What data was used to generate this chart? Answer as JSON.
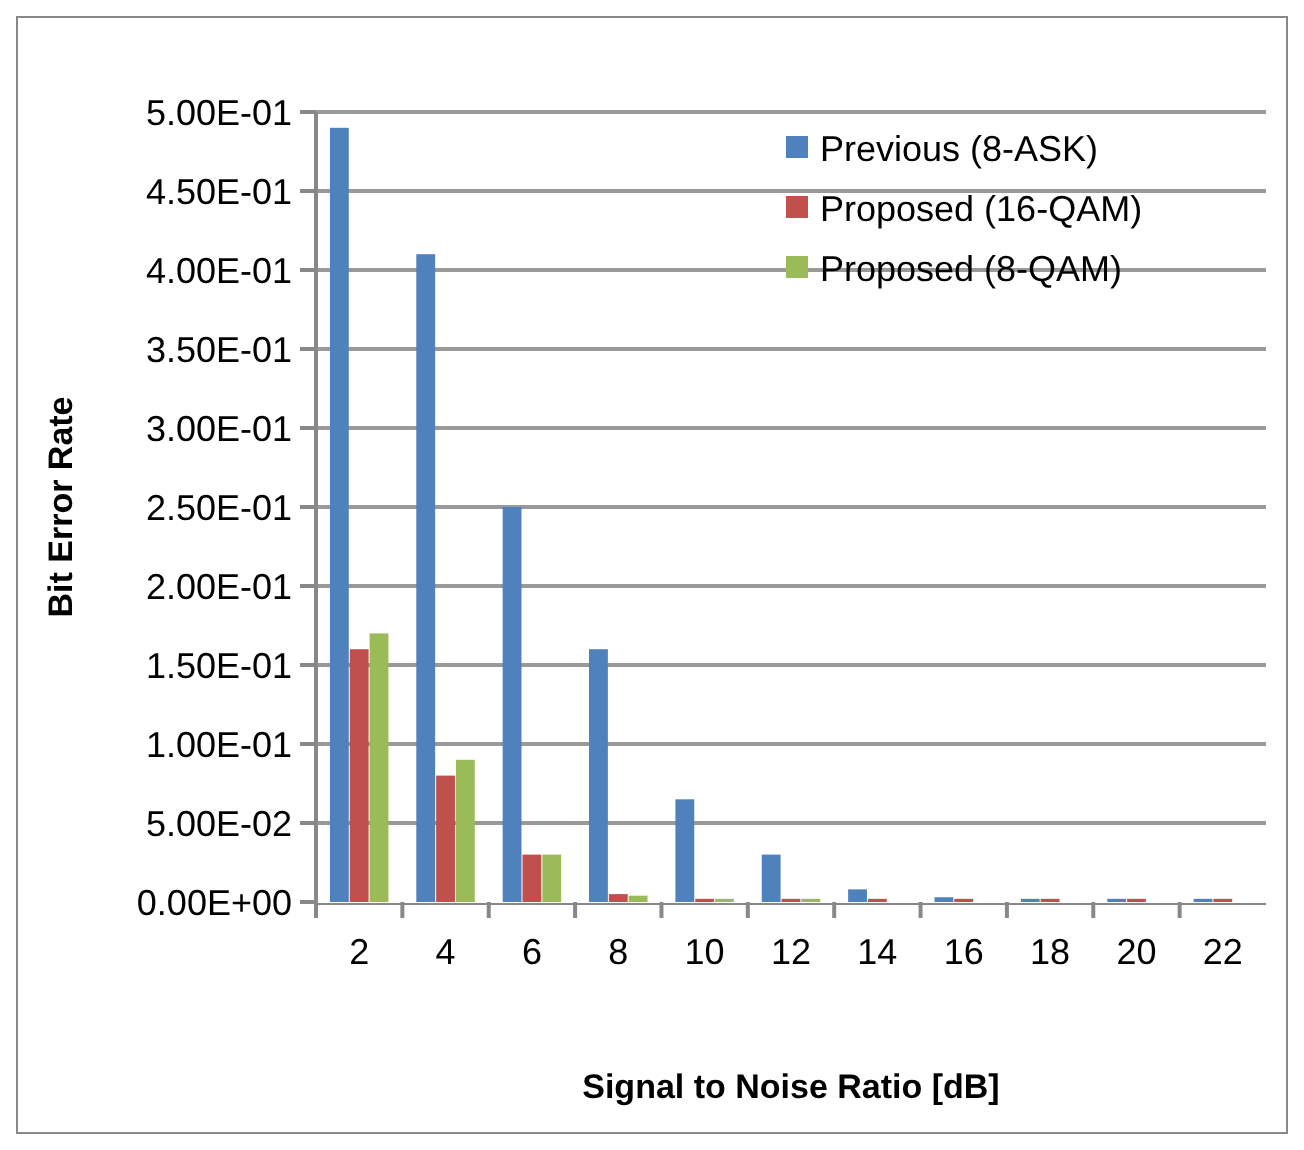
{
  "chart_data": {
    "type": "bar",
    "xlabel": "Signal to Noise Ratio [dB]",
    "ylabel": "Bit Error Rate",
    "categories": [
      "2",
      "4",
      "6",
      "8",
      "10",
      "12",
      "14",
      "16",
      "18",
      "20",
      "22"
    ],
    "series": [
      {
        "name": "Previous (8-ASK)",
        "color": "#4f81bd",
        "values": [
          0.49,
          0.41,
          0.25,
          0.16,
          0.065,
          0.03,
          0.008,
          0.003,
          0.002,
          0.002,
          0.002
        ]
      },
      {
        "name": "Proposed (16-QAM)",
        "color": "#c0504d",
        "values": [
          0.16,
          0.08,
          0.03,
          0.005,
          0.002,
          0.002,
          0.002,
          0.002,
          0.002,
          0.002,
          0.002
        ]
      },
      {
        "name": "Proposed (8-QAM)",
        "color": "#9bbb59",
        "values": [
          0.17,
          0.09,
          0.03,
          0.004,
          0.002,
          0.002,
          null,
          null,
          null,
          null,
          null
        ]
      }
    ],
    "ylim": [
      0,
      0.5
    ],
    "yticks": [
      {
        "value": 0,
        "label": "0.00E+00"
      },
      {
        "value": 0.05,
        "label": "5.00E-02"
      },
      {
        "value": 0.1,
        "label": "1.00E-01"
      },
      {
        "value": 0.15,
        "label": "1.50E-01"
      },
      {
        "value": 0.2,
        "label": "2.00E-01"
      },
      {
        "value": 0.25,
        "label": "2.50E-01"
      },
      {
        "value": 0.3,
        "label": "3.00E-01"
      },
      {
        "value": 0.35,
        "label": "3.50E-01"
      },
      {
        "value": 0.4,
        "label": "4.00E-01"
      },
      {
        "value": 0.45,
        "label": "4.50E-01"
      },
      {
        "value": 0.5,
        "label": "5.00E-01"
      }
    ],
    "grid": true,
    "legend": "top right"
  }
}
